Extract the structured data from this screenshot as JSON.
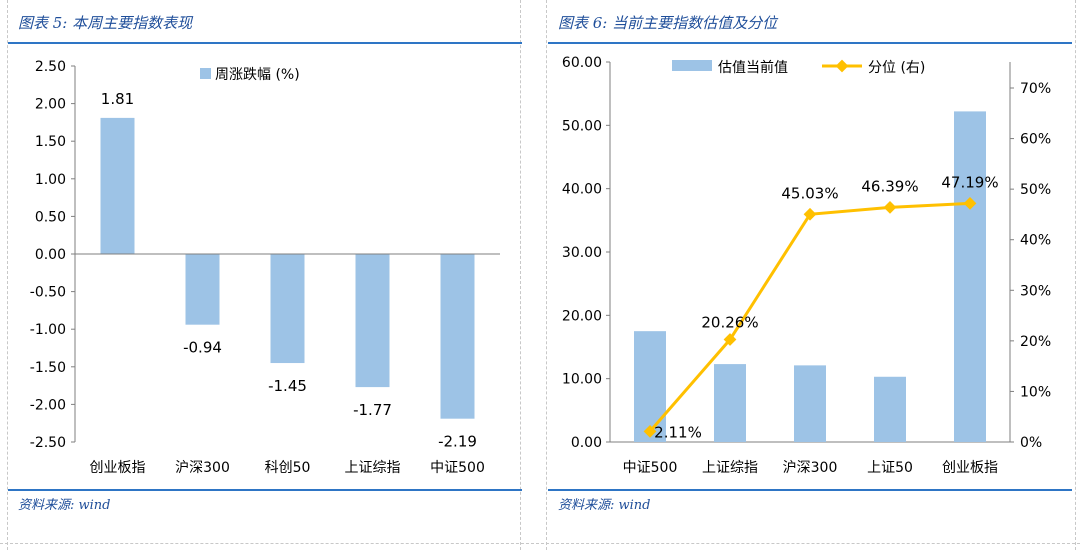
{
  "left": {
    "title": "图表 5: 本周主要指数表现",
    "source": "资料来源: wind"
  },
  "right": {
    "title": "图表 6: 当前主要指数估值及分位",
    "source": "资料来源: wind"
  },
  "colors": {
    "bar": "#9dc3e6",
    "line": "#ffc000",
    "rule": "#2e75c5",
    "title": "#1f4e9a"
  },
  "chart_data": [
    {
      "type": "bar",
      "categories": [
        "创业板指",
        "沪深300",
        "科创50",
        "上证综指",
        "中证500"
      ],
      "series": [
        {
          "name": "周涨跌幅 (%)",
          "values": [
            1.81,
            -0.94,
            -1.45,
            -1.77,
            -2.19
          ]
        }
      ],
      "data_labels": [
        "1.81",
        "-0.94",
        "-1.45",
        "-1.77",
        "-2.19"
      ],
      "ylim": [
        -2.5,
        2.5
      ],
      "yticks": [
        "2.50",
        "2.00",
        "1.50",
        "1.00",
        "0.50",
        "0.00",
        "-0.50",
        "-1.00",
        "-1.50",
        "-2.00",
        "-2.50"
      ],
      "legend": "top",
      "grid": false
    },
    {
      "type": "bar+line",
      "categories": [
        "中证500",
        "上证综指",
        "沪深300",
        "上证50",
        "创业板指"
      ],
      "series": [
        {
          "name": "估值当前值",
          "type": "bar",
          "axis": "left",
          "values": [
            17.5,
            12.3,
            12.1,
            10.3,
            52.2
          ]
        },
        {
          "name": "分位 (右)",
          "type": "line",
          "axis": "right",
          "values": [
            2.11,
            20.26,
            45.03,
            46.39,
            47.19
          ]
        }
      ],
      "line_labels": [
        "2.11%",
        "20.26%",
        "45.03%",
        "46.39%",
        "47.19%"
      ],
      "ylim": [
        0,
        60
      ],
      "yticks": [
        "60.00",
        "50.00",
        "40.00",
        "30.00",
        "20.00",
        "10.00",
        "0.00"
      ],
      "y2lim": [
        0,
        70
      ],
      "y2ticks": [
        "70%",
        "60%",
        "50%",
        "40%",
        "30%",
        "20%",
        "10%",
        "0%"
      ],
      "legend": "top",
      "grid": false
    }
  ]
}
